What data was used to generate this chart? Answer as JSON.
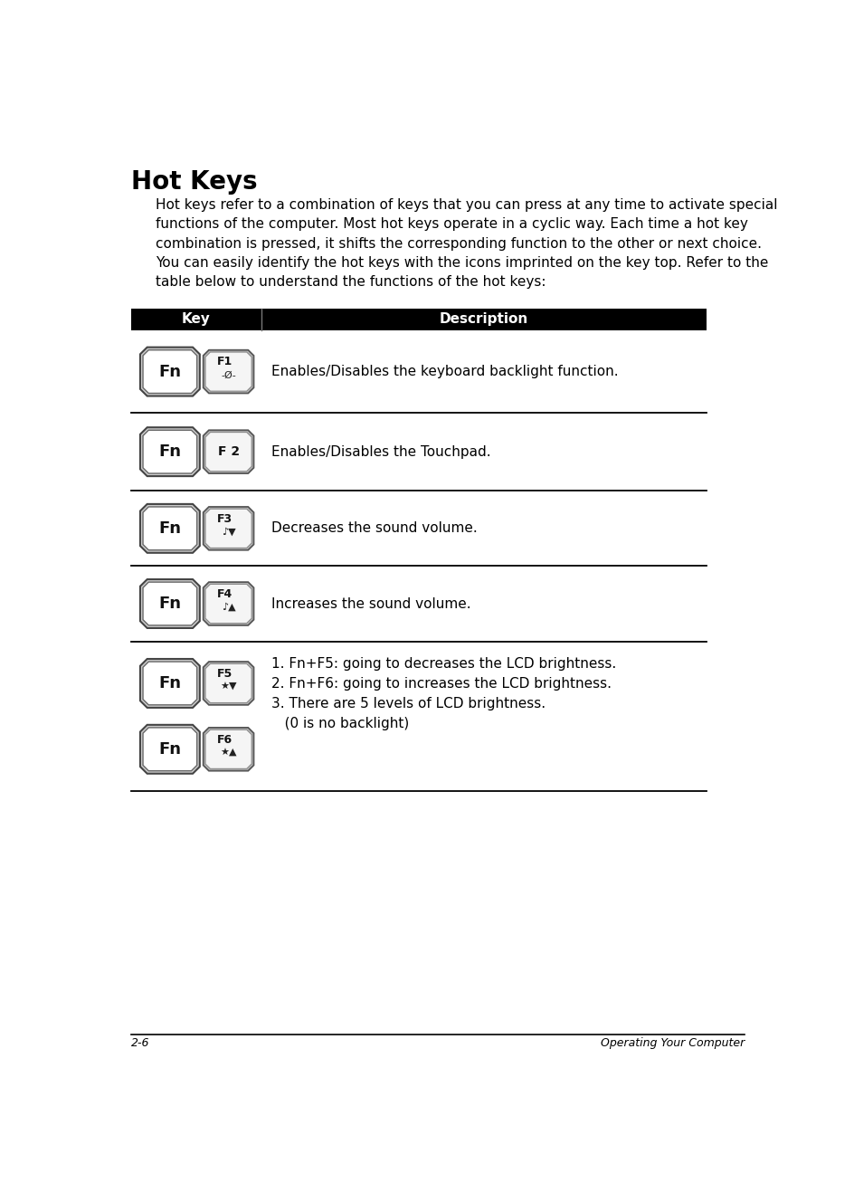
{
  "title": "Hot Keys",
  "title_fontsize": 20,
  "body_text_1": "Hot keys refer to a combination of keys that you can press at any time to activate special\nfunctions of the computer. Most hot keys operate in a cyclic way. Each time a hot key\ncombination is pressed, it shifts the corresponding function to the other or next choice.",
  "body_text_2": "You can easily identify the hot keys with the icons imprinted on the key top. Refer to the\ntable below to understand the functions of the hot keys:",
  "table_header_bg": "#000000",
  "table_header_fg": "#ffffff",
  "col1_label": "Key",
  "col2_label": "Description",
  "descriptions": [
    "Enables/Disables the keyboard backlight function.",
    "Enables/Disables the Touchpad.",
    "Decreases the sound volume.",
    "Increases the sound volume.",
    "1. Fn+F5: going to decreases the LCD brightness.\n2. Fn+F6: going to increases the LCD brightness.\n3. There are 5 levels of LCD brightness.\n   (0 is no backlight)"
  ],
  "f_key_labels": [
    "F1",
    "F 2",
    "F3",
    "F4",
    "F5",
    "F6"
  ],
  "footer_left": "2-6",
  "footer_right": "Operating Your Computer",
  "body_fontsize": 11,
  "desc_fontsize": 11,
  "bg_color": "#ffffff"
}
